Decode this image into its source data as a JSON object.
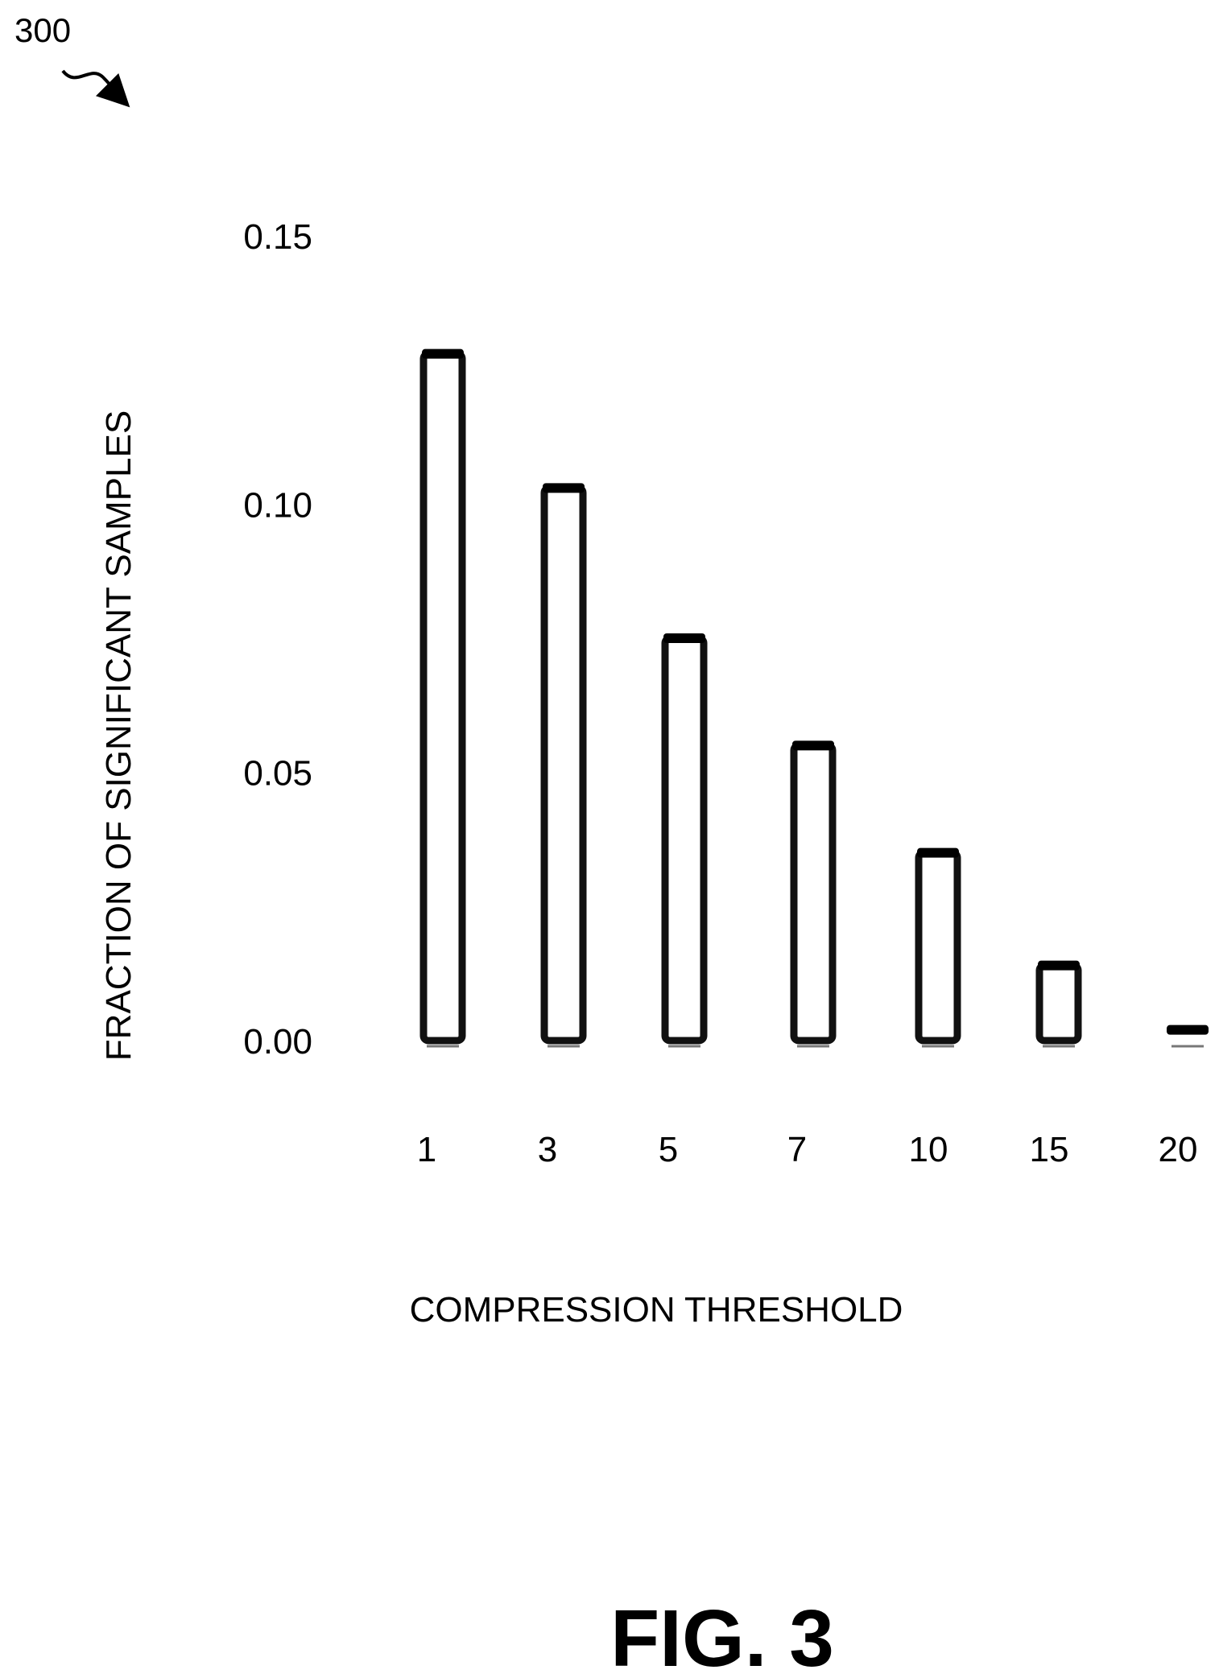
{
  "figure": {
    "reference_number": "300",
    "figure_label": "FIG. 3"
  },
  "chart_data": {
    "type": "bar",
    "title": "",
    "xlabel": "COMPRESSION THRESHOLD",
    "ylabel": "FRACTION OF SIGNIFICANT SAMPLES",
    "categories": [
      "1",
      "3",
      "5",
      "7",
      "10",
      "15",
      "20"
    ],
    "values": [
      0.128,
      0.103,
      0.075,
      0.055,
      0.035,
      0.014,
      0.002
    ],
    "ylim": [
      0,
      0.15
    ],
    "yticks": [
      "0.00",
      "0.05",
      "0.10",
      "0.15"
    ],
    "ytick_values": [
      0,
      0.05,
      0.1,
      0.15
    ],
    "grid": false,
    "legend": "none",
    "colors": {
      "bar_fill": "#ffffff",
      "bar_outline": "#111111",
      "text": "#000000"
    }
  }
}
